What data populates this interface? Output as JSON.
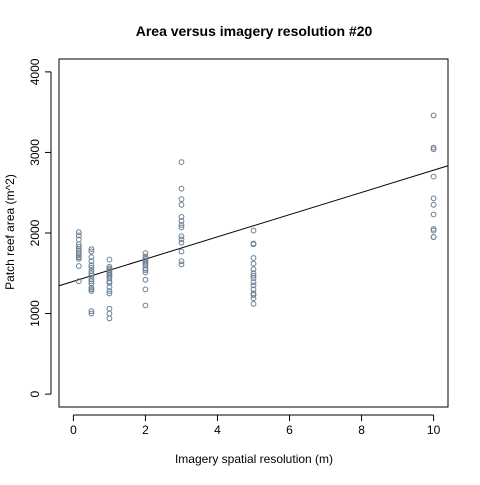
{
  "chart_data": {
    "type": "scatter",
    "title": "Area versus imagery resolution #20",
    "xlabel": "Imagery spatial resolution (m)",
    "ylabel": "Patch reef area (m^2)",
    "xlim": [
      -0.4,
      10.4
    ],
    "ylim": [
      -160,
      4160
    ],
    "x_ticks": [
      0,
      2,
      4,
      6,
      8,
      10
    ],
    "y_ticks": [
      0,
      1000,
      2000,
      3000,
      4000
    ],
    "grid": false,
    "legend": "none",
    "point_color": "#6a7f94",
    "line_color": "#000000",
    "regression_line": {
      "intercept": 1400,
      "slope": 138
    },
    "series": [
      {
        "x": [
          0.15,
          0.15,
          0.15,
          0.15,
          0.15,
          0.15,
          0.15,
          0.15,
          0.15,
          0.15,
          0.15,
          0.15,
          0.15,
          0.5,
          0.5,
          0.5,
          0.5,
          0.5,
          0.5,
          0.5,
          0.5,
          0.5,
          0.5,
          0.5,
          0.5,
          0.5,
          0.5,
          0.5,
          0.5,
          0.5,
          1,
          1,
          1,
          1,
          1,
          1,
          1,
          1,
          1,
          1,
          1,
          1,
          1,
          1,
          1,
          1,
          1,
          2,
          2,
          2,
          2,
          2,
          2,
          2,
          2,
          2,
          2,
          2,
          2,
          2,
          3,
          3,
          3,
          3,
          3,
          3,
          3,
          3,
          3,
          3,
          3,
          3,
          3,
          3,
          5,
          5,
          5,
          5,
          5,
          5,
          5,
          5,
          5,
          5,
          5,
          5,
          5,
          5,
          5,
          5,
          10,
          10,
          10,
          10,
          10,
          10,
          10,
          10,
          10,
          10,
          10
        ],
        "y": [
          2010,
          1970,
          1920,
          1860,
          1830,
          1800,
          1780,
          1750,
          1720,
          1700,
          1680,
          1590,
          1400,
          1800,
          1770,
          1700,
          1650,
          1600,
          1570,
          1530,
          1500,
          1470,
          1430,
          1400,
          1370,
          1320,
          1300,
          1280,
          1030,
          1000,
          1670,
          1580,
          1560,
          1540,
          1520,
          1500,
          1480,
          1460,
          1440,
          1400,
          1380,
          1330,
          1280,
          1250,
          1060,
          1000,
          940,
          1750,
          1710,
          1680,
          1660,
          1640,
          1620,
          1600,
          1560,
          1540,
          1510,
          1420,
          1300,
          1100,
          2880,
          2550,
          2420,
          2350,
          2200,
          2150,
          2100,
          2070,
          1960,
          1920,
          1880,
          1770,
          1650,
          1610,
          2030,
          1870,
          1860,
          1690,
          1620,
          1550,
          1500,
          1470,
          1440,
          1390,
          1350,
          1300,
          1250,
          1230,
          1190,
          1120,
          3460,
          3060,
          3040,
          2700,
          2430,
          2350,
          2230,
          2050,
          1950,
          2030,
          1950
        ]
      }
    ]
  }
}
